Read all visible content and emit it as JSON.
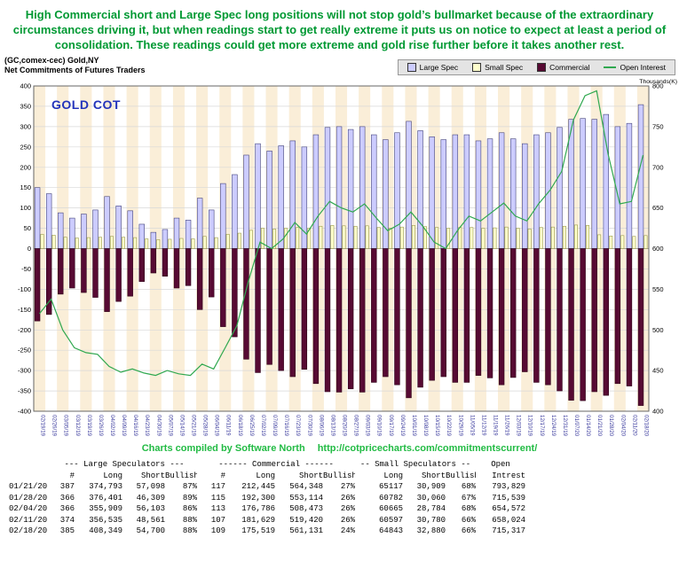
{
  "commentary": {
    "text": "High Commercial short and Large Spec long positions will not stop gold’s bullmarket because of the extraordinary circumstances driving it, but when readings start to get really extreme it puts us on notice to expect at least a period of consolidation. These readings could get more extreme and gold rise further before it takes another rest."
  },
  "header": {
    "symbol": "(GC,comex-cec) Gold,NY",
    "subtitle": "Net Commitments of Futures Traders"
  },
  "credit": {
    "text": "Charts compiled by Software North",
    "url": "http://cotpricecharts.com/commitmentscurrent/"
  },
  "colors": {
    "commentary_green": "#009933",
    "credit_green": "#22bb44",
    "stripe_peach": "#faeed8",
    "date_label_blue": "#3b3b9e",
    "chart_title_blue": "#2233bb"
  },
  "chart_data": {
    "type": "bar",
    "title": "GOLD COT",
    "legend_position": "top-right",
    "left_axis": {
      "min": -400,
      "max": 400,
      "step": 50
    },
    "right_axis": {
      "min": 400,
      "max": 800,
      "step": 50,
      "label": "Thousands(K)"
    },
    "x": [
      "02/19/19",
      "02/26/19",
      "03/05/19",
      "03/12/19",
      "03/19/19",
      "03/26/19",
      "04/02/19",
      "04/09/19",
      "04/16/19",
      "04/23/19",
      "04/30/19",
      "05/07/19",
      "05/14/19",
      "05/21/19",
      "05/28/19",
      "06/04/19",
      "06/11/19",
      "06/18/19",
      "06/25/19",
      "07/02/19",
      "07/09/19",
      "07/16/19",
      "07/23/19",
      "07/30/19",
      "08/06/19",
      "08/13/19",
      "08/20/19",
      "08/27/19",
      "09/03/19",
      "09/10/19",
      "09/17/19",
      "09/24/19",
      "10/01/19",
      "10/08/19",
      "10/15/19",
      "10/22/19",
      "10/29/19",
      "11/05/19",
      "11/12/19",
      "11/19/19",
      "11/26/19",
      "12/03/19",
      "12/10/19",
      "12/17/19",
      "12/24/19",
      "12/31/19",
      "01/07/20",
      "01/14/20",
      "01/21/20",
      "01/28/20",
      "02/04/20",
      "02/11/20",
      "02/18/20"
    ],
    "series": [
      {
        "name": "Large Spec",
        "type": "bar",
        "axis": "left",
        "color": "#ccccff",
        "stroke": "#44447a",
        "values": [
          150,
          135,
          88,
          75,
          85,
          95,
          128,
          105,
          93,
          60,
          40,
          47,
          75,
          70,
          124,
          95,
          160,
          182,
          230,
          258,
          240,
          253,
          265,
          250,
          280,
          298,
          300,
          293,
          300,
          280,
          268,
          285,
          313,
          290,
          275,
          268,
          280,
          280,
          265,
          270,
          285,
          270,
          258,
          280,
          285,
          298,
          318,
          320,
          318,
          330,
          300,
          308,
          354
        ]
      },
      {
        "name": "Small Spec",
        "type": "bar",
        "axis": "left",
        "color": "#ffffcc",
        "stroke": "#9a9a4a",
        "values": [
          35,
          33,
          28,
          26,
          27,
          28,
          30,
          28,
          27,
          24,
          22,
          23,
          25,
          24,
          30,
          27,
          35,
          38,
          45,
          50,
          48,
          50,
          52,
          50,
          55,
          57,
          56,
          55,
          56,
          52,
          50,
          53,
          57,
          54,
          52,
          50,
          52,
          52,
          50,
          51,
          53,
          50,
          48,
          52,
          53,
          55,
          58,
          57,
          34,
          31,
          32,
          30,
          32
        ]
      },
      {
        "name": "Commercial",
        "type": "bar",
        "axis": "left",
        "color": "#570a33",
        "stroke": "#2d0016",
        "values": [
          -178,
          -162,
          -112,
          -97,
          -108,
          -120,
          -155,
          -130,
          -117,
          -81,
          -60,
          -68,
          -97,
          -91,
          -150,
          -119,
          -192,
          -217,
          -272,
          -305,
          -285,
          -300,
          -315,
          -297,
          -332,
          -352,
          -353,
          -345,
          -353,
          -329,
          -315,
          -335,
          -367,
          -341,
          -324,
          -315,
          -329,
          -329,
          -312,
          -318,
          -335,
          -317,
          -303,
          -329,
          -335,
          -350,
          -373,
          -374,
          -352,
          -361,
          -332,
          -338,
          -386
        ]
      },
      {
        "name": "Open Interest",
        "type": "line",
        "axis": "right",
        "color": "#2fa84f",
        "values": [
          520,
          538,
          500,
          478,
          472,
          470,
          455,
          448,
          452,
          447,
          444,
          450,
          446,
          444,
          458,
          452,
          478,
          505,
          560,
          608,
          600,
          612,
          632,
          618,
          640,
          658,
          650,
          645,
          655,
          638,
          622,
          630,
          645,
          628,
          608,
          600,
          622,
          640,
          634,
          645,
          656,
          640,
          634,
          655,
          672,
          695,
          758,
          788,
          794,
          716,
          655,
          658,
          715
        ]
      }
    ]
  },
  "table": {
    "groups": [
      {
        "label": "",
        "span": 1
      },
      {
        "label": "--- Large Speculators ---",
        "span": 4
      },
      {
        "label": "------ Commercial ------",
        "span": 4
      },
      {
        "label": "-- Small Speculators --",
        "span": 3
      },
      {
        "label": "Open",
        "span": 1
      }
    ],
    "columns": [
      "",
      "#",
      "Long",
      "Short",
      "Bullish",
      "#",
      "Long",
      "Short",
      "Bullish",
      "Long",
      "Short",
      "Bullish",
      "Intrest"
    ],
    "rows": [
      [
        "01/21/20",
        "387",
        "374,793",
        "57,098",
        "87%",
        "117",
        "212,445",
        "564,348",
        "27%",
        "65117",
        "30,909",
        "68%",
        "793,829"
      ],
      [
        "01/28/20",
        "366",
        "376,401",
        "46,309",
        "89%",
        "115",
        "192,300",
        "553,114",
        "26%",
        "60782",
        "30,060",
        "67%",
        "715,539"
      ],
      [
        "02/04/20",
        "366",
        "355,909",
        "56,103",
        "86%",
        "113",
        "176,786",
        "508,473",
        "26%",
        "60665",
        "28,784",
        "68%",
        "654,572"
      ],
      [
        "02/11/20",
        "374",
        "356,535",
        "48,561",
        "88%",
        "107",
        "181,629",
        "519,420",
        "26%",
        "60597",
        "30,780",
        "66%",
        "658,024"
      ],
      [
        "02/18/20",
        "385",
        "408,349",
        "54,700",
        "88%",
        "109",
        "175,519",
        "561,131",
        "24%",
        "64843",
        "32,880",
        "66%",
        "715,317"
      ]
    ]
  }
}
